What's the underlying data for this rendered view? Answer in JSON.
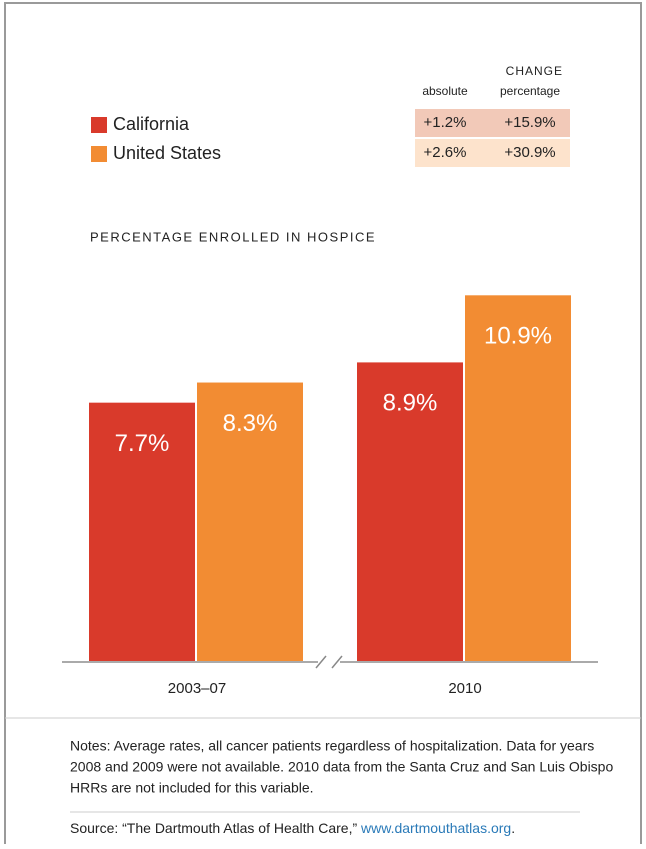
{
  "chart_data": {
    "type": "bar",
    "subtitle": "PERCENTAGE ENROLLED IN HOSPICE",
    "categories": [
      "2003–07",
      "2010"
    ],
    "series": [
      {
        "name": "California",
        "color": "#d93a2b",
        "values": [
          7.7,
          8.9
        ],
        "value_labels": [
          "7.7%",
          "8.9%"
        ]
      },
      {
        "name": "United States",
        "color": "#f28c33",
        "values": [
          8.3,
          10.9
        ],
        "value_labels": [
          "8.3%",
          "10.9%"
        ]
      }
    ],
    "change_table": {
      "title": "CHANGE",
      "columns": [
        "absolute",
        "percentage"
      ],
      "rows": [
        [
          "+1.2%",
          "+15.9%"
        ],
        [
          "+2.6%",
          "+30.9%"
        ]
      ]
    },
    "notes": [
      "Notes: Average rates, all cancer patients regardless of hospitalization. Data for years",
      "2008 and 2009 were not available. 2010 data from the Santa Cruz and San Luis Obispo",
      "HRRs are not included for this variable."
    ],
    "source_text": "Source: “The Dartmouth Atlas of Health Care,” ",
    "source_link": "www.dartmouthatlas.org",
    "source_end": "."
  }
}
